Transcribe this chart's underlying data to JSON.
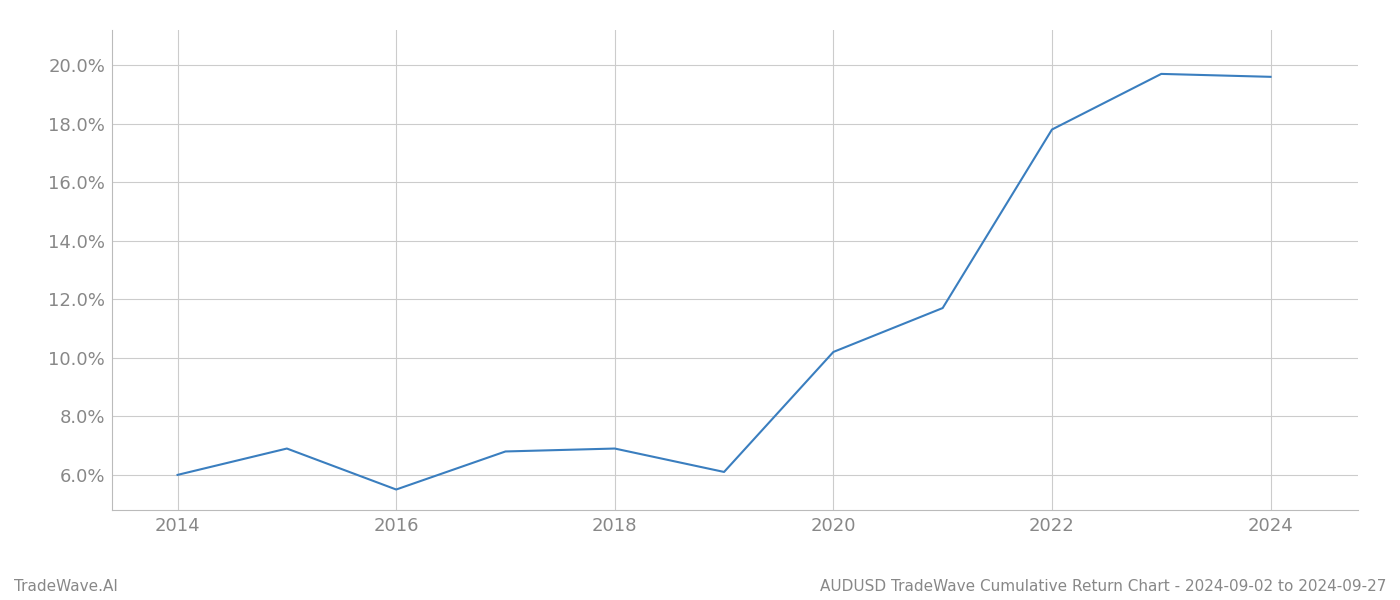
{
  "x_values": [
    2014,
    2015,
    2016,
    2017,
    2018,
    2019,
    2020,
    2021,
    2022,
    2023,
    2024
  ],
  "y_values": [
    6.0,
    6.9,
    5.5,
    6.8,
    6.9,
    6.1,
    10.2,
    11.7,
    17.8,
    19.7,
    19.6
  ],
  "line_color": "#3a7ebf",
  "line_width": 1.5,
  "background_color": "#ffffff",
  "grid_color": "#cccccc",
  "yticks": [
    6.0,
    8.0,
    10.0,
    12.0,
    14.0,
    16.0,
    18.0,
    20.0
  ],
  "xticks": [
    2014,
    2016,
    2018,
    2020,
    2022,
    2024
  ],
  "xlim": [
    2013.4,
    2024.8
  ],
  "ylim": [
    4.8,
    21.2
  ],
  "footer_left": "TradeWave.AI",
  "footer_right": "AUDUSD TradeWave Cumulative Return Chart - 2024-09-02 to 2024-09-27",
  "tick_label_color": "#888888",
  "footer_color": "#888888",
  "tick_fontsize": 13,
  "footer_fontsize": 11
}
